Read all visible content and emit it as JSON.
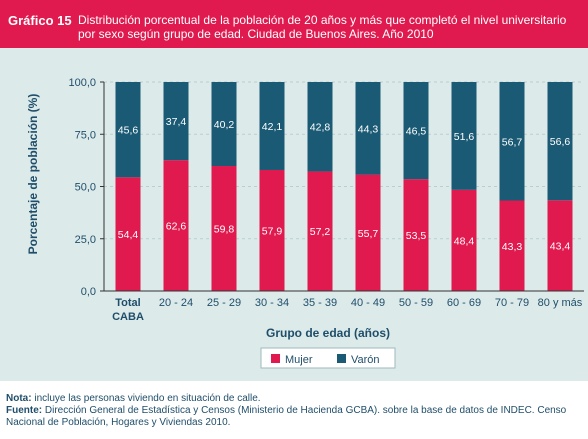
{
  "header": {
    "label": "Gráfico 15",
    "text": "Distribución porcentual de la población de 20 años y más que completó el nivel universitario por sexo según grupo de edad. Ciudad de Buenos Aires. Año 2010"
  },
  "chart_data": {
    "type": "bar",
    "stacked": true,
    "categories": [
      "Total CABA",
      "20 - 24",
      "25 - 29",
      "30 - 34",
      "35 - 39",
      "40 - 49",
      "50 - 59",
      "60 - 69",
      "70 - 79",
      "80 y más"
    ],
    "series": [
      {
        "name": "Mujer",
        "values": [
          54.4,
          62.6,
          59.8,
          57.9,
          57.2,
          55.7,
          53.5,
          48.4,
          43.3,
          43.4
        ],
        "labels": [
          "54,4",
          "62,6",
          "59,8",
          "57,9",
          "57,2",
          "55,7",
          "53,5",
          "48,4",
          "43,3",
          "43,4"
        ]
      },
      {
        "name": "Varón",
        "values": [
          45.6,
          37.4,
          40.2,
          42.1,
          42.8,
          44.3,
          46.5,
          51.6,
          56.7,
          56.6
        ],
        "labels": [
          "45,6",
          "37,4",
          "40,2",
          "42,1",
          "42,8",
          "44,3",
          "46,5",
          "51,6",
          "56,7",
          "56,6"
        ]
      }
    ],
    "xlabel": "Grupo de edad (años)",
    "ylabel": "Porcentaje de población (%)",
    "ylim": [
      0,
      100
    ],
    "yticks": [
      0,
      25,
      50,
      75,
      100
    ],
    "ytick_labels": [
      "0,0",
      "25,0",
      "50,0",
      "75,0",
      "100,0"
    ],
    "grid": true,
    "legend_position": "bottom-center"
  },
  "colors": {
    "mujer": "#e01a4f",
    "varon": "#1b5a75",
    "header": "#e01a4f",
    "panel": "#ddeaea",
    "text": "#1f4e6a"
  },
  "footnotes": {
    "nota_label": "Nota:",
    "nota_text": "incluye las personas viviendo en situación de calle.",
    "fuente_label": "Fuente:",
    "fuente_text": "Dirección General de Estadística y Censos (Ministerio de Hacienda GCBA). sobre la base de datos de INDEC. Censo Nacional de Población, Hogares y Viviendas 2010."
  }
}
